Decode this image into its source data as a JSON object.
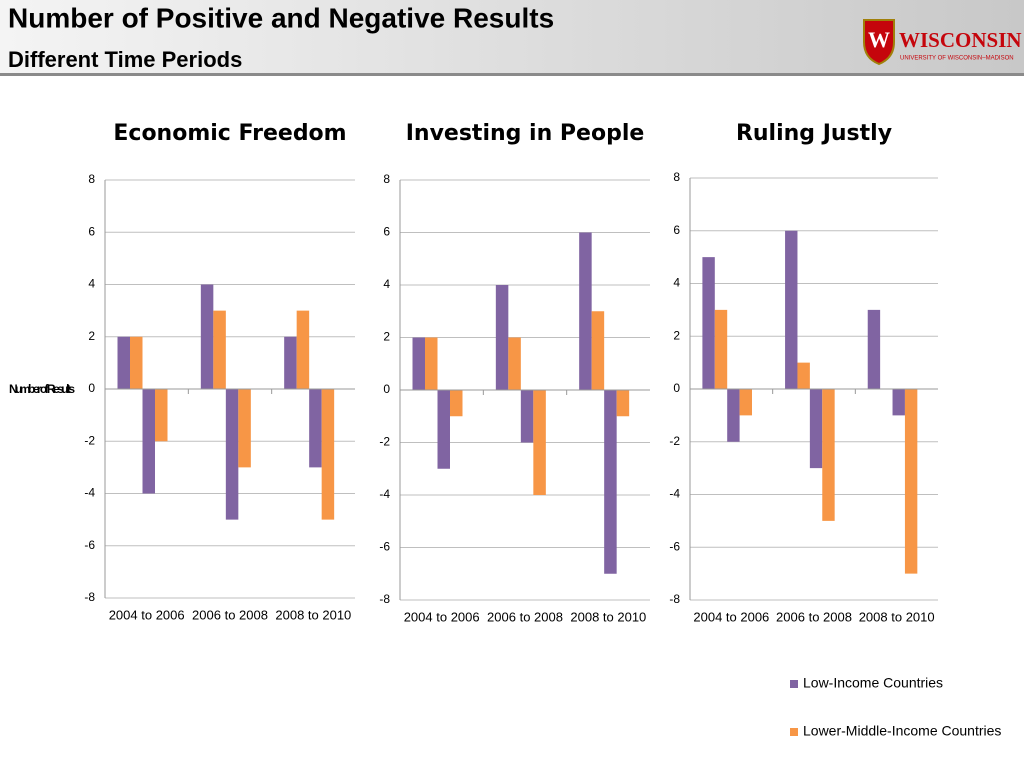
{
  "header": {
    "title": "Number of Positive and Negative Results",
    "subtitle": "Different Time Periods",
    "logo": "WISCONSIN",
    "logo_sub": "UNIVERSITY OF WISCONSIN–MADISON"
  },
  "legend": [
    {
      "name": "Low-Income Countries",
      "color": "#8064a2"
    },
    {
      "name": "Lower-Middle-Income Countries",
      "color": "#f79646"
    }
  ],
  "chart_data": [
    {
      "type": "bar",
      "title": "Economic Freedom",
      "ylabel": "Number of Results",
      "categories": [
        "2004 to 2006",
        "2006 to 2008",
        "2008 to 2010"
      ],
      "ylim": [
        -8,
        8
      ],
      "yticks": [
        -8,
        -6,
        -4,
        -2,
        0,
        2,
        4,
        6,
        8
      ],
      "grid": true,
      "series": [
        {
          "positive": [
            2,
            4,
            2
          ],
          "negative": [
            -4,
            -5,
            -3
          ]
        },
        {
          "positive": [
            2,
            3,
            3
          ],
          "negative": [
            -2,
            -3,
            -5
          ]
        }
      ]
    },
    {
      "type": "bar",
      "title": "Investing in People",
      "categories": [
        "2004 to 2006",
        "2006 to 2008",
        "2008 to 2010"
      ],
      "ylim": [
        -8,
        8
      ],
      "yticks": [
        -8,
        -6,
        -4,
        -2,
        0,
        2,
        4,
        6,
        8
      ],
      "grid": true,
      "series": [
        {
          "positive": [
            2,
            4,
            6
          ],
          "negative": [
            -3,
            -2,
            -7
          ]
        },
        {
          "positive": [
            2,
            2,
            3
          ],
          "negative": [
            -1,
            -4,
            -1
          ]
        }
      ]
    },
    {
      "type": "bar",
      "title": "Ruling Justly",
      "categories": [
        "2004 to 2006",
        "2006 to 2008",
        "2008 to 2010"
      ],
      "ylim": [
        -8,
        8
      ],
      "yticks": [
        -8,
        -6,
        -4,
        -2,
        0,
        2,
        4,
        6,
        8
      ],
      "grid": true,
      "series": [
        {
          "positive": [
            5,
            6,
            3
          ],
          "negative": [
            -2,
            -3,
            -1
          ]
        },
        {
          "positive": [
            3,
            1,
            0
          ],
          "negative": [
            -1,
            -5,
            -7
          ]
        }
      ]
    }
  ]
}
